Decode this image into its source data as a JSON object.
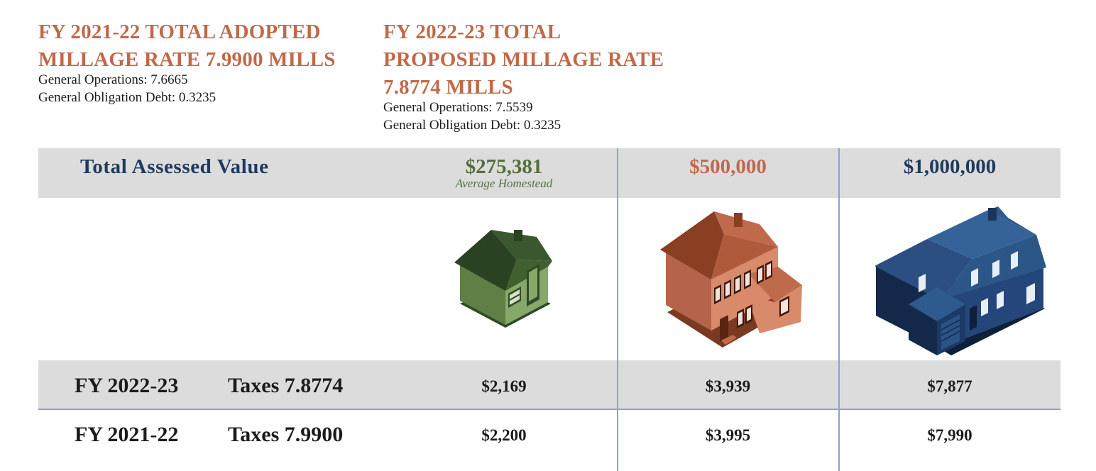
{
  "adopted": {
    "title_line1": "FY 2021-22 TOTAL ADOPTED",
    "title_line2": "MILLAGE RATE 7.9900 MILLS",
    "general_operations": "General Operations: 7.6665",
    "general_obligation_debt": "General Obligation Debt: 0.3235"
  },
  "proposed": {
    "title_line1": "FY 2022-23 TOTAL",
    "title_line2": "PROPOSED MILLAGE RATE",
    "title_line3": "7.8774 MILLS",
    "general_operations": "General Operations: 7.5539",
    "general_obligation_debt": "General Obligation Debt: 0.3235"
  },
  "table": {
    "header_label": "Total Assessed Value",
    "columns": [
      {
        "value": "$275,381",
        "caption": "Average Homestead",
        "color": "#53703c",
        "icon": "small-house-icon"
      },
      {
        "value": "$500,000",
        "color": "#c0694a",
        "icon": "two-story-house-icon"
      },
      {
        "value": "$1,000,000",
        "color": "#1f3a5c",
        "icon": "large-house-icon"
      }
    ],
    "rows": [
      {
        "year": "FY 2022-23",
        "tax_label": "Taxes 7.8774",
        "values": [
          "$2,169",
          "$3,939",
          "$7,877"
        ]
      },
      {
        "year": "FY 2021-22",
        "tax_label": "Taxes 7.9900",
        "values": [
          "$2,200",
          "$3,995",
          "$7,990"
        ]
      }
    ]
  },
  "colors": {
    "heading": "#c0694a",
    "band": "#dcdcdd",
    "divider": "#8ba3cf",
    "navy": "#1f3a5c"
  }
}
